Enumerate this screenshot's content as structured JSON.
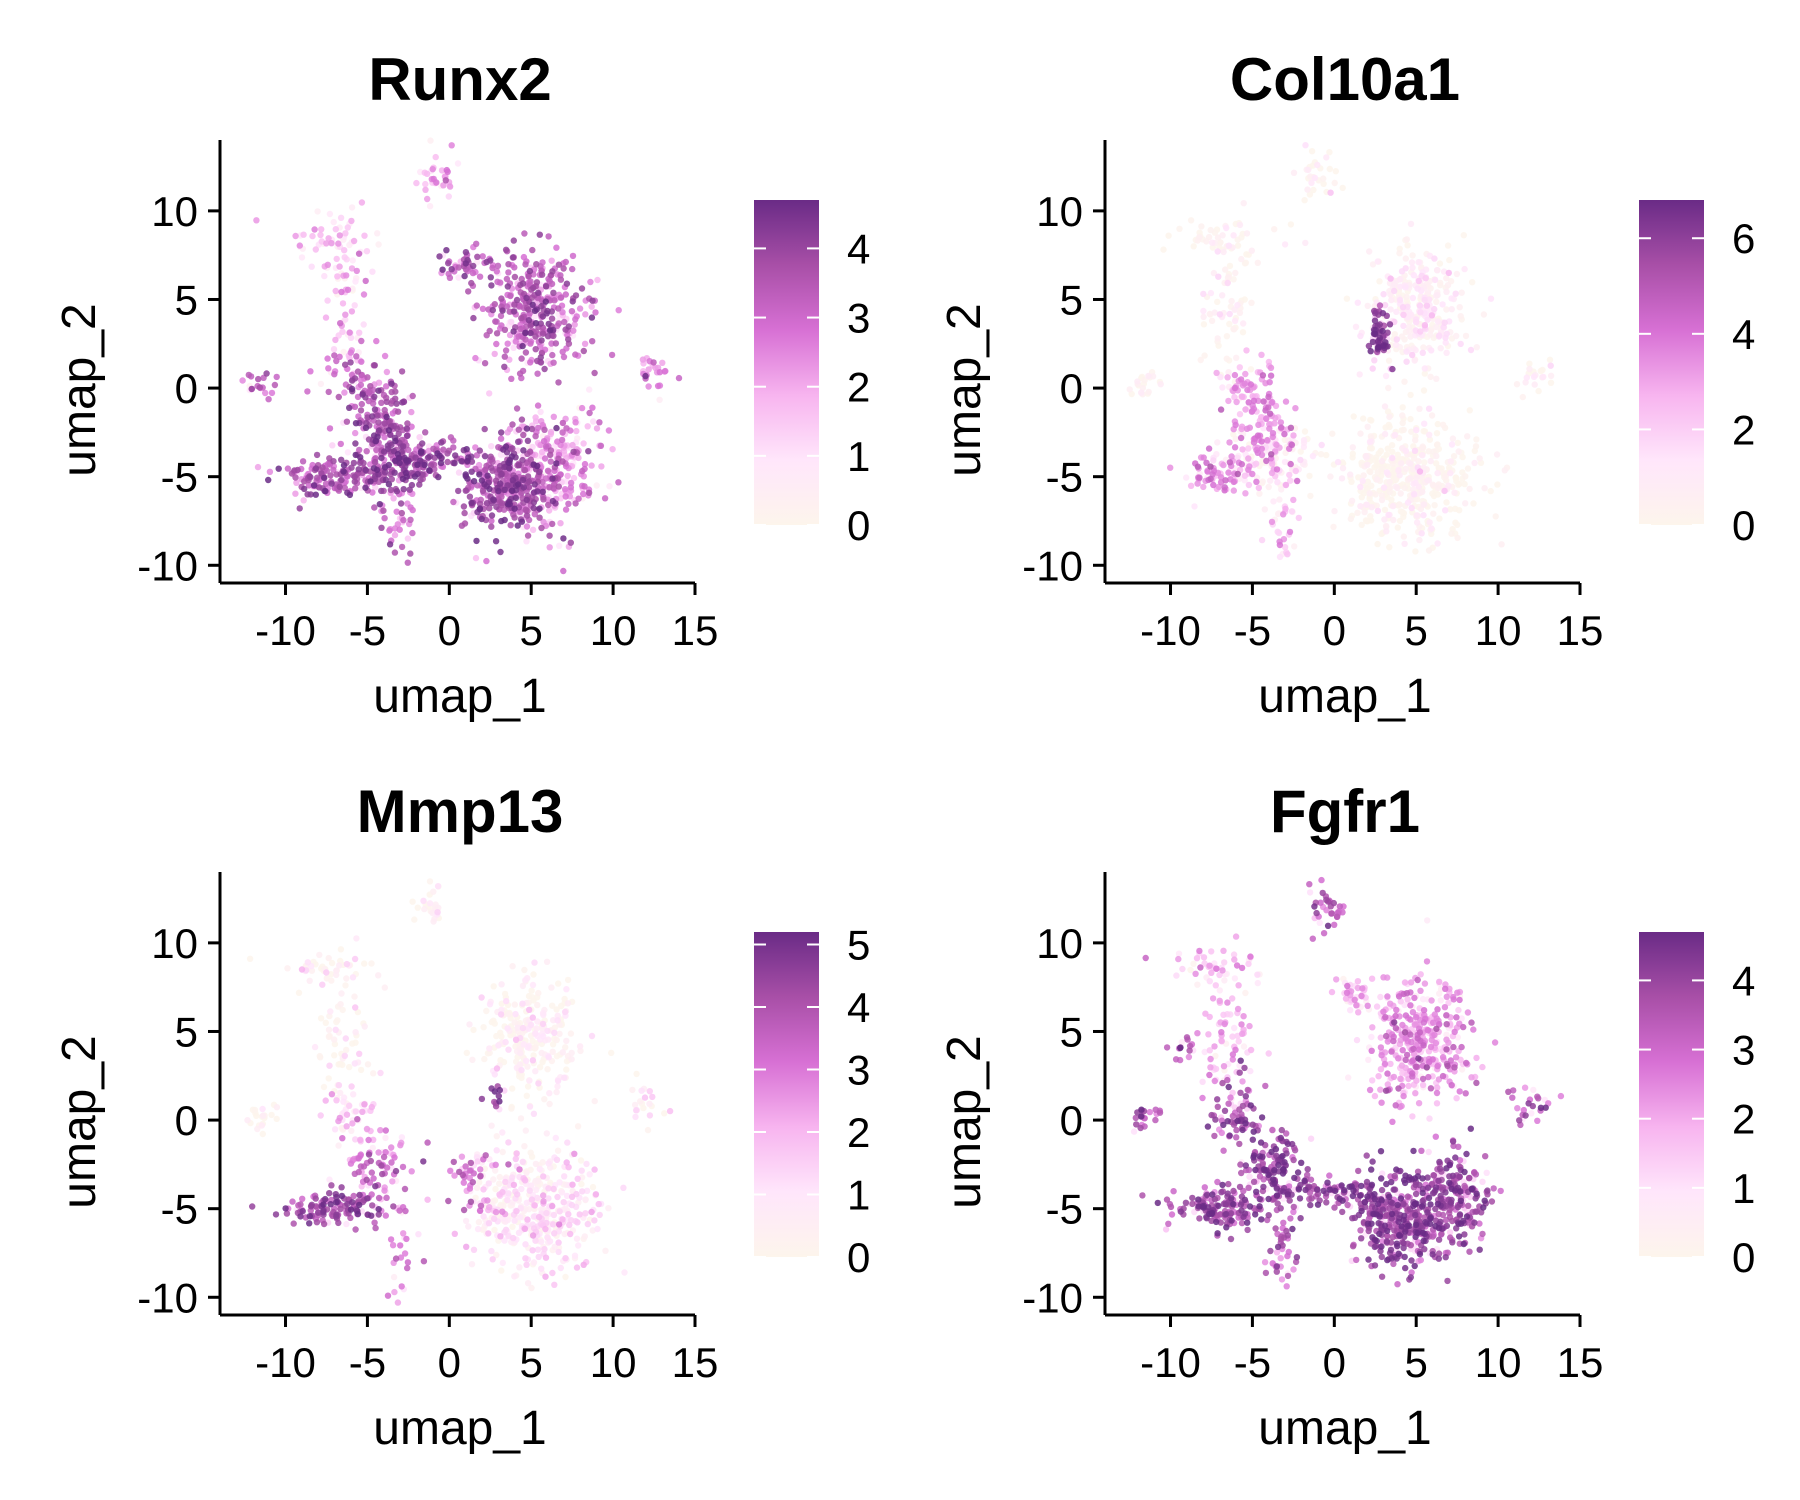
{
  "chart_data": [
    {
      "type": "scatter",
      "title": "Runx2",
      "xlabel": "umap_1",
      "ylabel": "umap_2",
      "xlim": [
        -14,
        15
      ],
      "ylim": [
        -11,
        14
      ],
      "xticks": [
        -10,
        -5,
        0,
        5,
        10,
        15
      ],
      "yticks": [
        -10,
        -5,
        0,
        5,
        10
      ],
      "grid": false,
      "legend": {
        "position": "right",
        "min": 0,
        "max": 4.7,
        "ticks": [
          0,
          1,
          2,
          3,
          4
        ]
      },
      "clusters": [
        {
          "x": -11.5,
          "y": 0.2,
          "sx": 0.5,
          "sy": 0.4,
          "n": 20,
          "expr": 3.3
        },
        {
          "x": -7,
          "y": 8.5,
          "sx": 1.6,
          "sy": 0.6,
          "n": 45,
          "expr": 1.6
        },
        {
          "x": -6.5,
          "y": 4.5,
          "sx": 0.9,
          "sy": 2.2,
          "n": 70,
          "expr": 1.8
        },
        {
          "x": -6,
          "y": 0.5,
          "sx": 0.9,
          "sy": 1.0,
          "n": 60,
          "expr": 3.2
        },
        {
          "x": -4,
          "y": -1.5,
          "sx": 1.0,
          "sy": 1.0,
          "n": 100,
          "expr": 3.5
        },
        {
          "x": -7,
          "y": -5,
          "sx": 1.6,
          "sy": 0.6,
          "n": 160,
          "expr": 3.5
        },
        {
          "x": -3.5,
          "y": -4,
          "sx": 1.2,
          "sy": 1.0,
          "n": 180,
          "expr": 3.8
        },
        {
          "x": -3,
          "y": -7.5,
          "sx": 0.5,
          "sy": 1.3,
          "n": 40,
          "expr": 3.0
        },
        {
          "x": -1,
          "y": -4,
          "sx": 1.2,
          "sy": 0.5,
          "n": 80,
          "expr": 3.6
        },
        {
          "x": -0.5,
          "y": 12,
          "sx": 0.6,
          "sy": 0.6,
          "n": 35,
          "expr": 2.0
        },
        {
          "x": 1,
          "y": 7,
          "sx": 0.9,
          "sy": 0.5,
          "n": 45,
          "expr": 3.3
        },
        {
          "x": 5.2,
          "y": 4.3,
          "sx": 1.5,
          "sy": 1.8,
          "n": 380,
          "expr": 3.3
        },
        {
          "x": 3.5,
          "y": -5.5,
          "sx": 1.4,
          "sy": 1.3,
          "n": 360,
          "expr": 3.8
        },
        {
          "x": 6.5,
          "y": -4.5,
          "sx": 1.3,
          "sy": 1.6,
          "n": 260,
          "expr": 2.5
        },
        {
          "x": 12.5,
          "y": 1,
          "sx": 0.6,
          "sy": 0.6,
          "n": 25,
          "expr": 2.6
        }
      ]
    },
    {
      "type": "scatter",
      "title": "Col10a1",
      "xlabel": "umap_1",
      "ylabel": "umap_2",
      "xlim": [
        -14,
        15
      ],
      "ylim": [
        -11,
        14
      ],
      "xticks": [
        -10,
        -5,
        0,
        5,
        10,
        15
      ],
      "yticks": [
        -10,
        -5,
        0,
        5,
        10
      ],
      "grid": false,
      "legend": {
        "position": "right",
        "min": 0,
        "max": 6.8,
        "ticks": [
          0,
          2,
          4,
          6
        ]
      },
      "clusters": [
        {
          "x": -11.5,
          "y": 0.2,
          "sx": 0.5,
          "sy": 0.4,
          "n": 20,
          "expr": 0.1
        },
        {
          "x": -7,
          "y": 8.5,
          "sx": 1.6,
          "sy": 0.6,
          "n": 45,
          "expr": 0.3
        },
        {
          "x": -6.5,
          "y": 4.5,
          "sx": 0.9,
          "sy": 2.2,
          "n": 70,
          "expr": 0.6
        },
        {
          "x": -5.5,
          "y": 0,
          "sx": 0.8,
          "sy": 0.9,
          "n": 60,
          "expr": 3.2
        },
        {
          "x": -4,
          "y": -2.5,
          "sx": 1.0,
          "sy": 1.0,
          "n": 90,
          "expr": 3.4
        },
        {
          "x": -6.5,
          "y": -4.8,
          "sx": 1.3,
          "sy": 0.6,
          "n": 80,
          "expr": 3.6
        },
        {
          "x": -3.5,
          "y": -4,
          "sx": 1.2,
          "sy": 1.0,
          "n": 100,
          "expr": 1.0
        },
        {
          "x": -3,
          "y": -7.5,
          "sx": 0.5,
          "sy": 1.3,
          "n": 30,
          "expr": 2.5
        },
        {
          "x": -1,
          "y": 12,
          "sx": 0.6,
          "sy": 0.6,
          "n": 30,
          "expr": 0.2
        },
        {
          "x": 2.8,
          "y": 3,
          "sx": 0.3,
          "sy": 0.8,
          "n": 60,
          "expr": 6.2
        },
        {
          "x": 5,
          "y": 4.5,
          "sx": 1.5,
          "sy": 1.8,
          "n": 300,
          "expr": 0.9
        },
        {
          "x": 4.5,
          "y": -5,
          "sx": 2.0,
          "sy": 1.8,
          "n": 450,
          "expr": 0.2
        },
        {
          "x": 12.5,
          "y": 0.5,
          "sx": 0.6,
          "sy": 0.6,
          "n": 20,
          "expr": 0.5
        }
      ]
    },
    {
      "type": "scatter",
      "title": "Mmp13",
      "xlabel": "umap_1",
      "ylabel": "umap_2",
      "xlim": [
        -14,
        15
      ],
      "ylim": [
        -11,
        14
      ],
      "xticks": [
        -10,
        -5,
        0,
        5,
        10,
        15
      ],
      "yticks": [
        -10,
        -5,
        0,
        5,
        10
      ],
      "grid": false,
      "legend": {
        "position": "right",
        "min": 0,
        "max": 5.2,
        "ticks": [
          0,
          1,
          2,
          3,
          4,
          5
        ]
      },
      "clusters": [
        {
          "x": -11.5,
          "y": 0.2,
          "sx": 0.5,
          "sy": 0.4,
          "n": 20,
          "expr": 0.1
        },
        {
          "x": -7,
          "y": 8.5,
          "sx": 1.6,
          "sy": 0.6,
          "n": 45,
          "expr": 0.3
        },
        {
          "x": -6.5,
          "y": 4.5,
          "sx": 0.9,
          "sy": 2.2,
          "n": 60,
          "expr": 0.4
        },
        {
          "x": -6,
          "y": 0.5,
          "sx": 0.8,
          "sy": 0.9,
          "n": 40,
          "expr": 1.5
        },
        {
          "x": -4.5,
          "y": -2.5,
          "sx": 1.0,
          "sy": 1.2,
          "n": 80,
          "expr": 3.2
        },
        {
          "x": -7,
          "y": -5,
          "sx": 1.5,
          "sy": 0.5,
          "n": 130,
          "expr": 4.2
        },
        {
          "x": -3,
          "y": -7.5,
          "sx": 0.5,
          "sy": 1.3,
          "n": 25,
          "expr": 2.8
        },
        {
          "x": -1,
          "y": 12,
          "sx": 0.6,
          "sy": 0.6,
          "n": 25,
          "expr": 0.2
        },
        {
          "x": 5,
          "y": 4.5,
          "sx": 1.5,
          "sy": 1.8,
          "n": 250,
          "expr": 0.3
        },
        {
          "x": 3,
          "y": 1.5,
          "sx": 0.3,
          "sy": 0.4,
          "n": 12,
          "expr": 4.5
        },
        {
          "x": 1.5,
          "y": -3.5,
          "sx": 0.6,
          "sy": 0.8,
          "n": 40,
          "expr": 3.3
        },
        {
          "x": 5,
          "y": -5,
          "sx": 2.0,
          "sy": 1.8,
          "n": 420,
          "expr": 1.0
        },
        {
          "x": 12,
          "y": 1,
          "sx": 0.6,
          "sy": 0.6,
          "n": 20,
          "expr": 0.4
        }
      ]
    },
    {
      "type": "scatter",
      "title": "Fgfr1",
      "xlabel": "umap_1",
      "ylabel": "umap_2",
      "xlim": [
        -14,
        15
      ],
      "ylim": [
        -11,
        14
      ],
      "xticks": [
        -10,
        -5,
        0,
        5,
        10,
        15
      ],
      "yticks": [
        -10,
        -5,
        0,
        5,
        10
      ],
      "grid": false,
      "legend": {
        "position": "right",
        "min": 0,
        "max": 4.7,
        "ticks": [
          0,
          1,
          2,
          3,
          4
        ]
      },
      "clusters": [
        {
          "x": -11.5,
          "y": 0.2,
          "sx": 0.5,
          "sy": 0.4,
          "n": 20,
          "expr": 3.3
        },
        {
          "x": -7,
          "y": 8.5,
          "sx": 1.6,
          "sy": 0.6,
          "n": 45,
          "expr": 1.6
        },
        {
          "x": -9,
          "y": 4,
          "sx": 0.5,
          "sy": 0.4,
          "n": 15,
          "expr": 3.5
        },
        {
          "x": -6.5,
          "y": 4.5,
          "sx": 0.9,
          "sy": 2.2,
          "n": 70,
          "expr": 1.8
        },
        {
          "x": -6,
          "y": 0.5,
          "sx": 0.9,
          "sy": 1.0,
          "n": 70,
          "expr": 3.8
        },
        {
          "x": -4,
          "y": -2.5,
          "sx": 1.0,
          "sy": 1.0,
          "n": 120,
          "expr": 4.0
        },
        {
          "x": -7,
          "y": -5,
          "sx": 1.6,
          "sy": 0.6,
          "n": 160,
          "expr": 3.8
        },
        {
          "x": -3,
          "y": -7.5,
          "sx": 0.5,
          "sy": 1.3,
          "n": 40,
          "expr": 3.6
        },
        {
          "x": -1,
          "y": -4,
          "sx": 1.2,
          "sy": 0.5,
          "n": 80,
          "expr": 3.9
        },
        {
          "x": -0.5,
          "y": 12,
          "sx": 0.6,
          "sy": 0.6,
          "n": 35,
          "expr": 3.2
        },
        {
          "x": 1,
          "y": 7,
          "sx": 0.9,
          "sy": 0.5,
          "n": 40,
          "expr": 1.7
        },
        {
          "x": 5.2,
          "y": 4.3,
          "sx": 1.5,
          "sy": 1.8,
          "n": 380,
          "expr": 2.3
        },
        {
          "x": 4,
          "y": -5.5,
          "sx": 1.5,
          "sy": 1.3,
          "n": 400,
          "expr": 4.0
        },
        {
          "x": 7.5,
          "y": -4.5,
          "sx": 1.0,
          "sy": 1.4,
          "n": 200,
          "expr": 3.9
        },
        {
          "x": 12,
          "y": 1,
          "sx": 0.8,
          "sy": 0.7,
          "n": 25,
          "expr": 3.0
        }
      ]
    }
  ],
  "colors": {
    "scale": [
      "#fdf5ec",
      "#ffe6fb",
      "#f7b4ef",
      "#d770d4",
      "#a84fa7",
      "#6a2b86"
    ]
  }
}
